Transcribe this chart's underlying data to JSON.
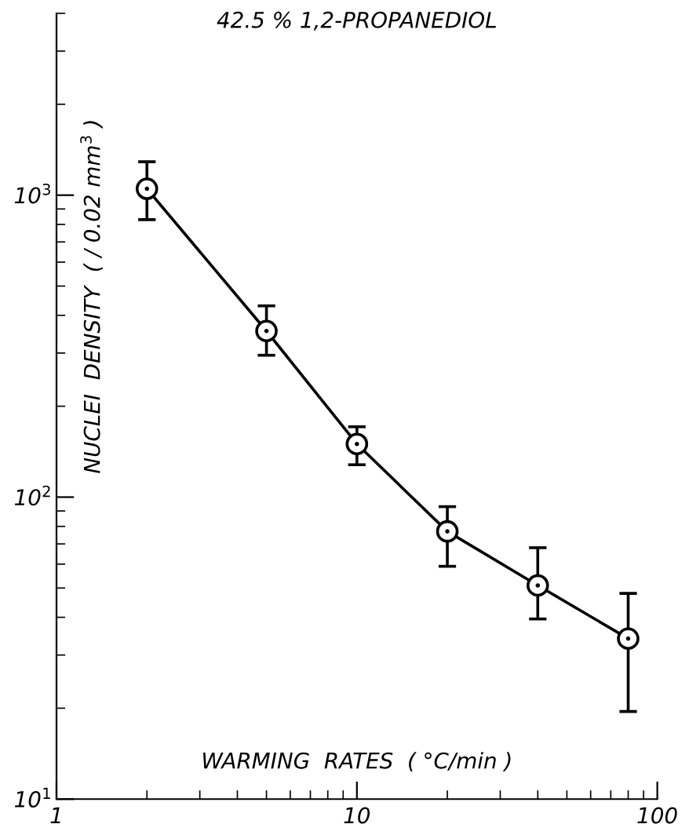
{
  "chart_data": {
    "type": "line",
    "title": "42.5 % 1,2-PROPANEDIOL",
    "xlabel": "WARMING  RATES  ( °C/min )",
    "ylabel": "NUCLEI  DENSITY  ( / 0.02 mm$^{3}$ )",
    "x": [
      2,
      5,
      10,
      20,
      40,
      80
    ],
    "series": [
      {
        "color": "#000000",
        "values": [
          1050,
          355,
          150,
          77,
          51,
          34
        ],
        "errors": [
          [
            830,
            1290
          ],
          [
            295,
            430
          ],
          [
            128,
            171
          ],
          [
            59,
            93
          ],
          [
            39.5,
            68
          ],
          [
            19.5,
            48
          ]
        ]
      }
    ],
    "log": "xy",
    "xlim": [
      1,
      100
    ],
    "ylim": [
      10,
      4000
    ],
    "xticks": [
      1,
      10,
      100
    ],
    "yticks": [
      {
        "value": 10,
        "label": "10$^{1}$"
      },
      {
        "value": 100,
        "label": "10$^{2}$"
      },
      {
        "value": 1000,
        "label": "10$^{3}$"
      }
    ],
    "marker": "circle",
    "line_style": "solid",
    "grid": false,
    "legend": false
  }
}
